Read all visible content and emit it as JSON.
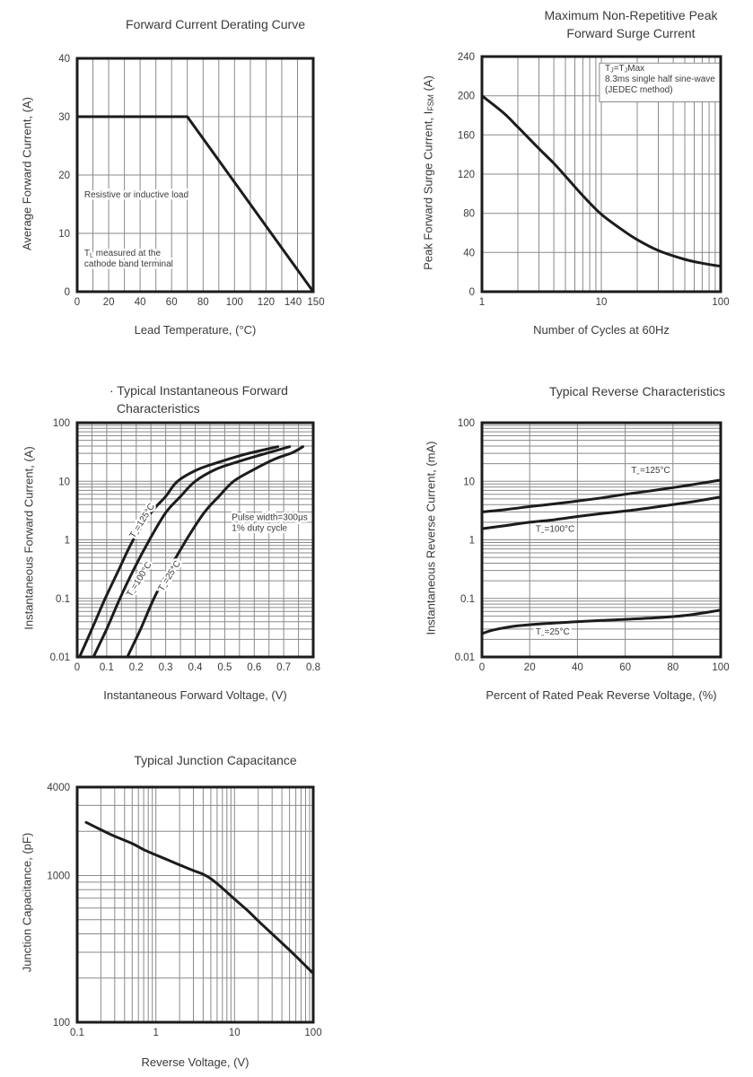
{
  "page": {
    "background": "#ffffff",
    "text_color": "#3b3b3b",
    "curve_color": "#1c1c1c",
    "grid_color": "#8a8a8a",
    "frame_color": "#1c1c1c"
  },
  "chart_data": [
    {
      "type": "line",
      "title": {
        "line1": "Forward Current Derating Curve"
      },
      "xlabel": "Lead Temperature, (°C)",
      "ylabel": "Average Forward Current, (A)",
      "x_axis": {
        "scale": "linear",
        "min": 0,
        "max": 150,
        "grid_step": 10,
        "ticks": [
          0,
          20,
          40,
          60,
          80,
          100,
          120,
          140,
          150
        ],
        "tick_labels": [
          "0",
          "20",
          "40",
          "60",
          "80",
          "100",
          "120",
          "140",
          "150"
        ],
        "label_dx": [
          0,
          0,
          0,
          0,
          0,
          0,
          0,
          -5,
          3
        ]
      },
      "y_axis": {
        "scale": "linear",
        "min": 0,
        "max": 40,
        "grid_step": 10,
        "ticks": [
          0,
          10,
          20,
          30,
          40
        ],
        "tick_labels": [
          "0",
          "10",
          "20",
          "30",
          "40"
        ]
      },
      "series": [
        {
          "name": "average-forward-current",
          "points": [
            [
              0,
              30
            ],
            [
              70,
              30
            ],
            [
              150,
              0
            ]
          ]
        }
      ],
      "annotations": [
        {
          "lines": [
            "Resistive or inductive load"
          ],
          "fx": 0.03,
          "fy": 0.585
        },
        {
          "lines": [
            "T|L| measured at the",
            "cathode band terminal"
          ],
          "fx": 0.03,
          "fy": 0.835
        }
      ]
    },
    {
      "type": "line",
      "title": {
        "line1": "Maximum Non-Repetitive Peak",
        "line2": "Forward Surge Current"
      },
      "xlabel": "Number of Cycles at 60Hz",
      "ylabel": "Peak Forward Surge Current, I|FSM| (A)",
      "x_axis": {
        "scale": "log",
        "min": 1,
        "max": 100,
        "ticks": [
          1,
          10,
          100
        ],
        "tick_labels": [
          "1",
          "10",
          "100"
        ]
      },
      "y_axis": {
        "scale": "linear",
        "min": 0,
        "max": 240,
        "grid_step": 40,
        "ticks": [
          0,
          40,
          80,
          120,
          160,
          200,
          240
        ],
        "tick_labels": [
          "0",
          "40",
          "80",
          "120",
          "160",
          "200",
          "240"
        ]
      },
      "series": [
        {
          "name": "peak-forward-surge-current",
          "points": [
            [
              1,
              200
            ],
            [
              1.5,
              183
            ],
            [
              2,
              168
            ],
            [
              3,
              146
            ],
            [
              4,
              131
            ],
            [
              5,
              118
            ],
            [
              7,
              98
            ],
            [
              10,
              79
            ],
            [
              15,
              63
            ],
            [
              20,
              53
            ],
            [
              30,
              42
            ],
            [
              50,
              33
            ],
            [
              70,
              29
            ],
            [
              100,
              26
            ]
          ]
        }
      ],
      "annotations": [
        {
          "lines": [
            "T|J|=T|J|Max",
            "8.3ms single half sine-wave",
            "(JEDEC method)"
          ],
          "fx": 0.515,
          "fy": 0.05,
          "box": {
            "fx": 0.492,
            "fy": 0.028,
            "fw": 0.508,
            "fh": 0.165
          }
        }
      ]
    },
    {
      "type": "line",
      "title": {
        "line1": "· Typical Instantaneous Forward",
        "line2": "Characteristics"
      },
      "xlabel": "Instantaneous Forward Voltage, (V)",
      "ylabel": "Instantaneous Forward Current, (A)",
      "x_axis": {
        "scale": "linear",
        "min": 0,
        "max": 0.8,
        "grid_step": 0.05,
        "ticks": [
          0,
          0.1,
          0.2,
          0.3,
          0.4,
          0.5,
          0.6,
          0.7,
          0.8
        ],
        "tick_labels": [
          "0",
          "0.1",
          "0.2",
          "0.3",
          "0.4",
          "0.5",
          "0.6",
          "0.7",
          "0.8"
        ]
      },
      "y_axis": {
        "scale": "log",
        "min": 0.01,
        "max": 100,
        "ticks": [
          0.01,
          0.1,
          1,
          10,
          100
        ],
        "tick_labels": [
          "0.01",
          "0.1",
          "1",
          "10",
          "100"
        ]
      },
      "series": [
        {
          "name": "TJ=125C",
          "points": [
            [
              0.008,
              0.01
            ],
            [
              0.05,
              0.03
            ],
            [
              0.095,
              0.1
            ],
            [
              0.14,
              0.3
            ],
            [
              0.19,
              1
            ],
            [
              0.25,
              2.9
            ],
            [
              0.3,
              5.5
            ],
            [
              0.34,
              10
            ],
            [
              0.41,
              16
            ],
            [
              0.49,
              22
            ],
            [
              0.57,
              29
            ],
            [
              0.68,
              39
            ]
          ]
        },
        {
          "name": "TJ=100C",
          "points": [
            [
              0.055,
              0.01
            ],
            [
              0.1,
              0.03
            ],
            [
              0.145,
              0.1
            ],
            [
              0.19,
              0.3
            ],
            [
              0.245,
              1
            ],
            [
              0.3,
              2.9
            ],
            [
              0.35,
              5.5
            ],
            [
              0.4,
              10
            ],
            [
              0.47,
              16
            ],
            [
              0.55,
              22
            ],
            [
              0.63,
              29
            ],
            [
              0.72,
              39
            ]
          ]
        },
        {
          "name": "TJ=25C",
          "points": [
            [
              0.17,
              0.01
            ],
            [
              0.215,
              0.03
            ],
            [
              0.26,
              0.1
            ],
            [
              0.31,
              0.3
            ],
            [
              0.37,
              1
            ],
            [
              0.43,
              2.9
            ],
            [
              0.48,
              5.5
            ],
            [
              0.53,
              10
            ],
            [
              0.6,
              16
            ],
            [
              0.67,
              24
            ],
            [
              0.73,
              31
            ],
            [
              0.765,
              39
            ]
          ]
        }
      ],
      "curve_labels": [
        {
          "text": "T|J|=125°C",
          "fx": 0.285,
          "fy": 0.425,
          "rotate": -58
        },
        {
          "text": "T|J|=100°C",
          "fx": 0.272,
          "fy": 0.675,
          "rotate": -58
        },
        {
          "text": "T|J|=25°C",
          "fx": 0.4,
          "fy": 0.66,
          "rotate": -58
        }
      ],
      "annotations": [
        {
          "lines": [
            "Pulse width=300μs",
            "1% duty cycle"
          ],
          "fx": 0.655,
          "fy": 0.405
        }
      ]
    },
    {
      "type": "line",
      "title": {
        "line1": "Typical Reverse Characteristics"
      },
      "xlabel": "Percent of Rated Peak Reverse Voltage, (%)",
      "ylabel": "Instantaneous Reverse Current, (mA)",
      "x_axis": {
        "scale": "linear",
        "min": 0,
        "max": 100,
        "grid_step": 20,
        "ticks": [
          0,
          20,
          40,
          60,
          80,
          100
        ],
        "tick_labels": [
          "0",
          "20",
          "40",
          "60",
          "80",
          "100"
        ]
      },
      "y_axis": {
        "scale": "log",
        "min": 0.01,
        "max": 100,
        "ticks": [
          0.01,
          0.1,
          1,
          10,
          100
        ],
        "tick_labels": [
          "0.01",
          "0.1",
          "1",
          "10",
          "100"
        ]
      },
      "series": [
        {
          "name": "TJ=125C",
          "points": [
            [
              0,
              3
            ],
            [
              10,
              3.3
            ],
            [
              20,
              3.7
            ],
            [
              30,
              4.1
            ],
            [
              40,
              4.6
            ],
            [
              50,
              5.2
            ],
            [
              60,
              6
            ],
            [
              70,
              6.8
            ],
            [
              80,
              7.8
            ],
            [
              90,
              9
            ],
            [
              100,
              10.5
            ]
          ]
        },
        {
          "name": "TJ=100C",
          "points": [
            [
              0,
              1.55
            ],
            [
              10,
              1.75
            ],
            [
              20,
              2
            ],
            [
              30,
              2.2
            ],
            [
              40,
              2.5
            ],
            [
              50,
              2.8
            ],
            [
              60,
              3.1
            ],
            [
              70,
              3.5
            ],
            [
              80,
              4
            ],
            [
              90,
              4.6
            ],
            [
              100,
              5.4
            ]
          ]
        },
        {
          "name": "TJ=25C",
          "points": [
            [
              0,
              0.025
            ],
            [
              5,
              0.029
            ],
            [
              15,
              0.034
            ],
            [
              30,
              0.038
            ],
            [
              50,
              0.042
            ],
            [
              70,
              0.046
            ],
            [
              85,
              0.051
            ],
            [
              100,
              0.063
            ]
          ]
        }
      ],
      "curve_labels": [
        {
          "text": "T|J|=125°C",
          "fx": 0.625,
          "fy": 0.215,
          "anchor": "start"
        },
        {
          "text": "T|J|=100°C",
          "fx": 0.225,
          "fy": 0.465,
          "anchor": "start"
        },
        {
          "text": "T|J|=25°C",
          "fx": 0.225,
          "fy": 0.905,
          "anchor": "start"
        }
      ]
    },
    {
      "type": "line",
      "title": {
        "line1": "Typical Junction Capacitance"
      },
      "xlabel": "Reverse Voltage, (V)",
      "ylabel": "Junction Capacitance, (pF)",
      "x_axis": {
        "scale": "log",
        "min": 0.1,
        "max": 100,
        "ticks": [
          0.1,
          1,
          10,
          100
        ],
        "tick_labels": [
          "0.1",
          "1",
          "10",
          "100"
        ]
      },
      "y_axis": {
        "scale": "log",
        "min": 100,
        "max": 4000,
        "ticks": [
          100,
          1000,
          4000
        ],
        "tick_labels": [
          "100",
          "1000",
          "4000"
        ]
      },
      "series": [
        {
          "name": "junction-capacitance",
          "points": [
            [
              0.13,
              2300
            ],
            [
              0.2,
              2050
            ],
            [
              0.3,
              1850
            ],
            [
              0.5,
              1650
            ],
            [
              0.7,
              1500
            ],
            [
              1,
              1380
            ],
            [
              1.5,
              1260
            ],
            [
              2,
              1180
            ],
            [
              3,
              1080
            ],
            [
              4,
              1020
            ],
            [
              5,
              950
            ],
            [
              7,
              820
            ],
            [
              10,
              690
            ],
            [
              15,
              570
            ],
            [
              20,
              490
            ],
            [
              30,
              400
            ],
            [
              50,
              310
            ],
            [
              70,
              260
            ],
            [
              100,
              215
            ]
          ]
        }
      ]
    }
  ]
}
